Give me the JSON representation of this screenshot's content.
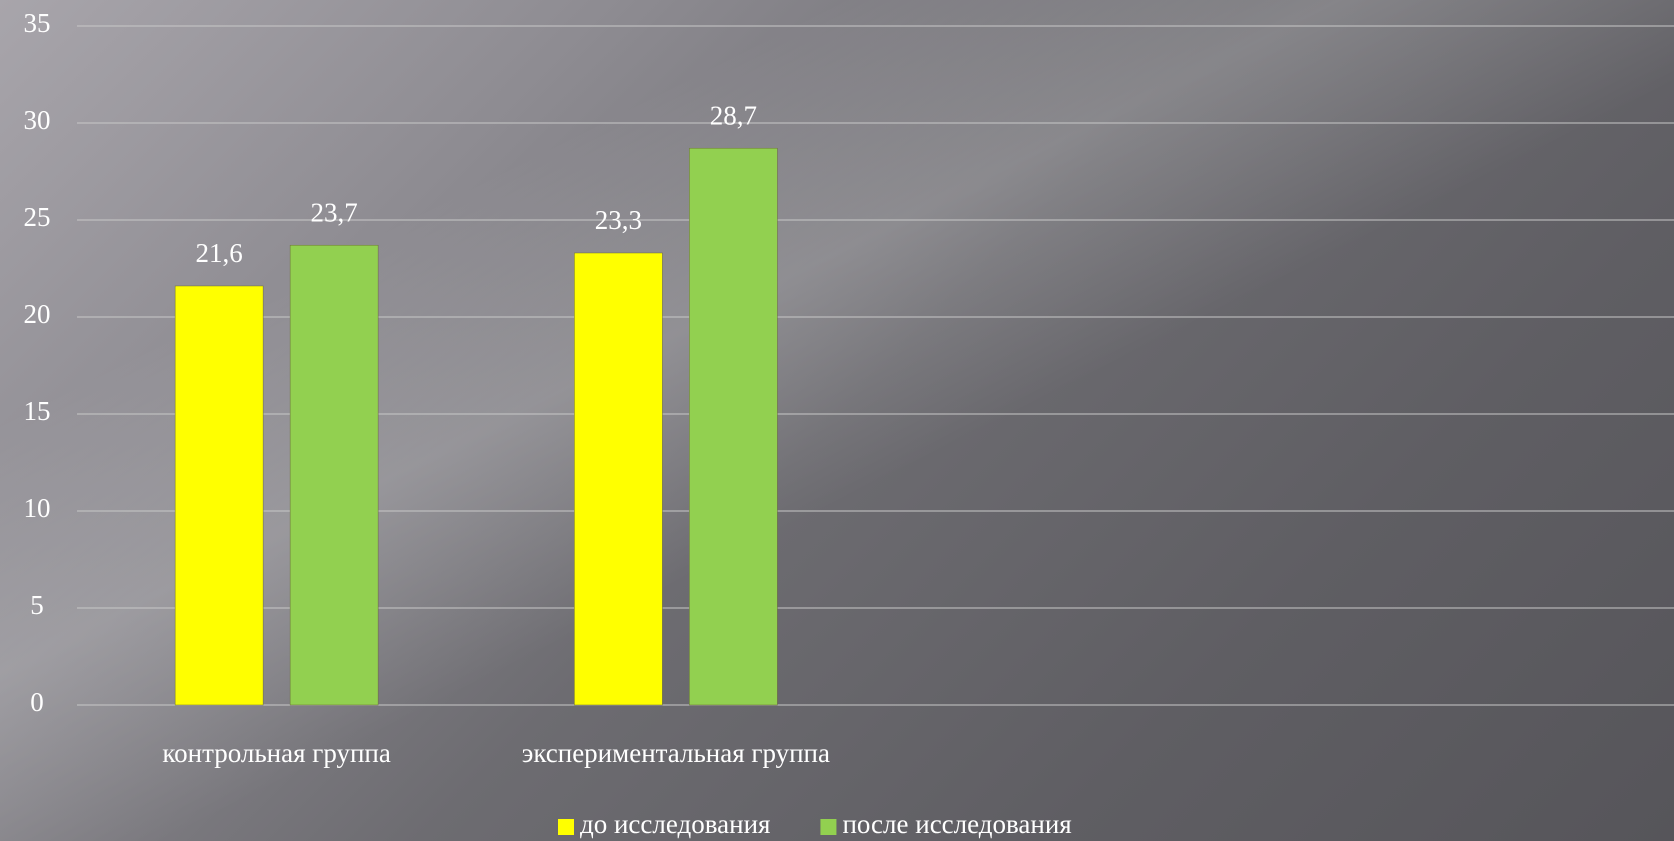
{
  "chart_data": {
    "type": "bar",
    "categories": [
      "контрольная группа",
      "экспериментальная группа",
      null,
      null
    ],
    "series": [
      {
        "name": "до исследования",
        "color": "#ffff00",
        "values": [
          21.6,
          23.3,
          null,
          null
        ],
        "value_labels": [
          "21,6",
          "23,3",
          null,
          null
        ]
      },
      {
        "name": "после исследования",
        "color": "#92d050",
        "values": [
          23.7,
          28.7,
          null,
          null
        ],
        "value_labels": [
          "23,7",
          "28,7",
          null,
          null
        ]
      }
    ],
    "ylim": [
      0,
      35
    ],
    "yticks": [
      0,
      5,
      10,
      15,
      20,
      25,
      30,
      35
    ],
    "grid": true,
    "legend": "bottom"
  }
}
